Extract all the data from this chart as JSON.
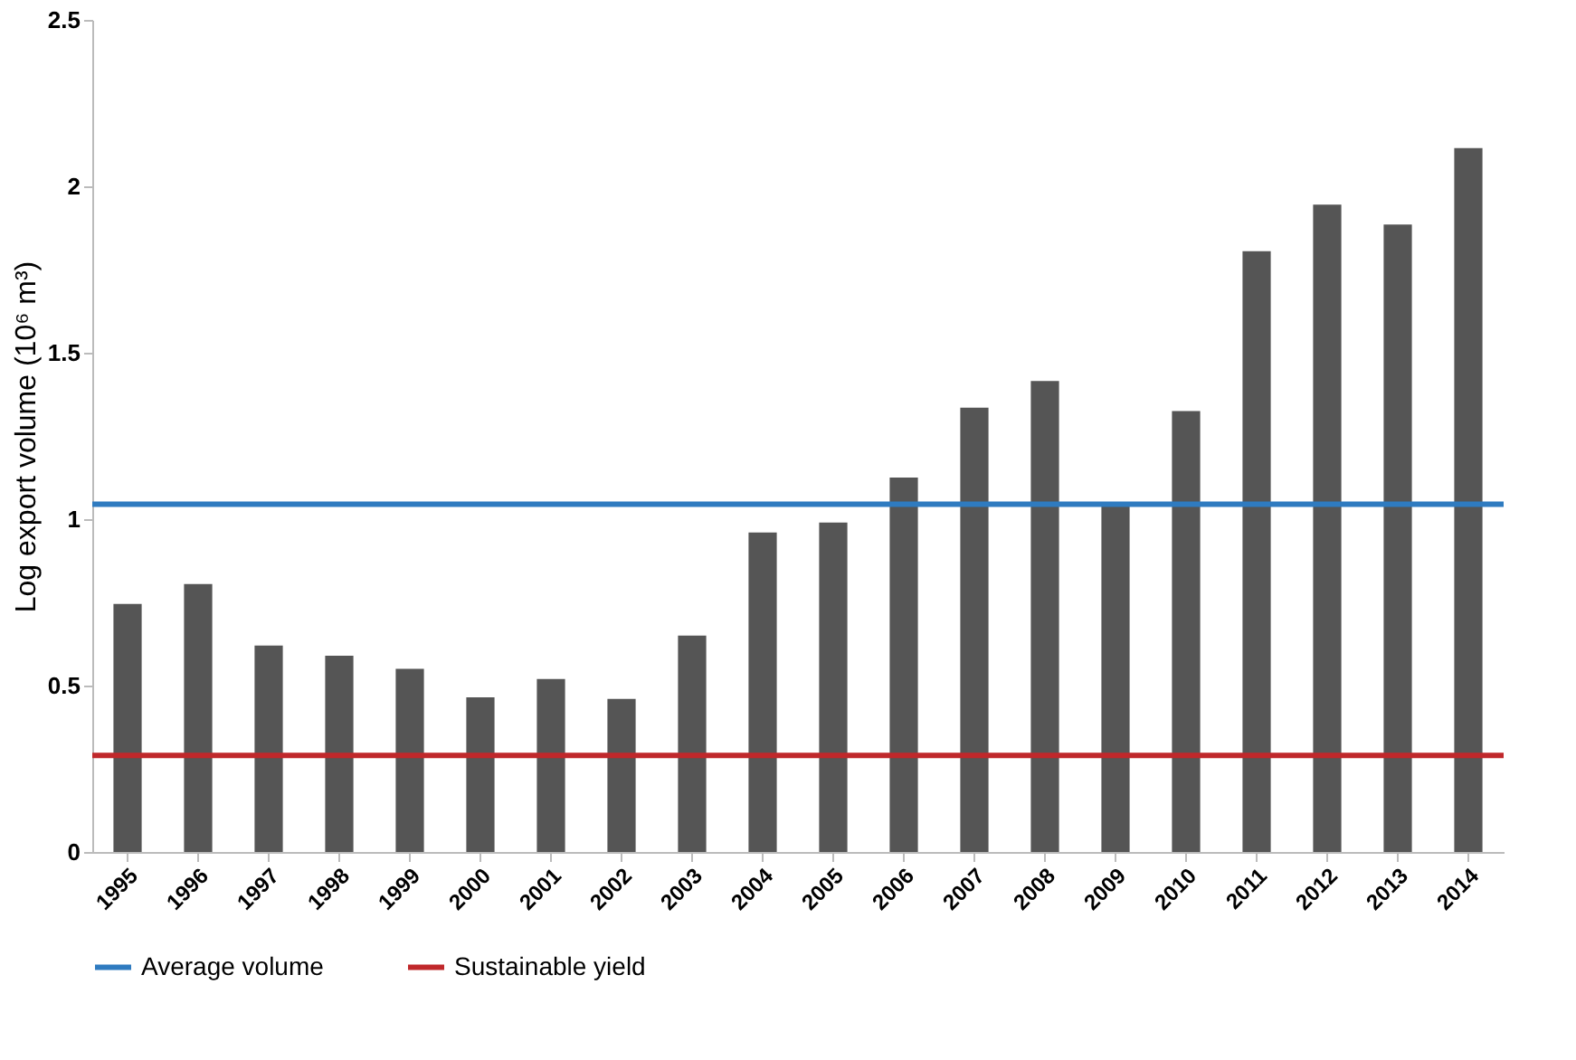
{
  "chart_data": {
    "type": "bar",
    "ylabel": "Log export volume (10⁶ m³)",
    "categories": [
      "1995",
      "1996",
      "1997",
      "1998",
      "1999",
      "2000",
      "2001",
      "2002",
      "2003",
      "2004",
      "2005",
      "2006",
      "2007",
      "2008",
      "2009",
      "2010",
      "2011",
      "2012",
      "2013",
      "2014"
    ],
    "values": [
      0.745,
      0.805,
      0.62,
      0.59,
      0.55,
      0.465,
      0.52,
      0.46,
      0.65,
      0.96,
      0.99,
      1.125,
      1.335,
      1.415,
      1.045,
      1.325,
      1.805,
      1.945,
      1.885,
      2.115
    ],
    "color": "#555555",
    "ylim": [
      0,
      2.5
    ],
    "yticks": [
      0,
      0.5,
      1,
      1.5,
      2,
      2.5
    ],
    "grid": false,
    "legend": "bottom",
    "ref_lines": [
      {
        "axis": "y",
        "value": 1.045,
        "label": "Average volume",
        "color": "#2f7bc0"
      },
      {
        "axis": "y",
        "value": 0.29,
        "label": "Sustainable yield",
        "color": "#c0282b"
      }
    ]
  }
}
